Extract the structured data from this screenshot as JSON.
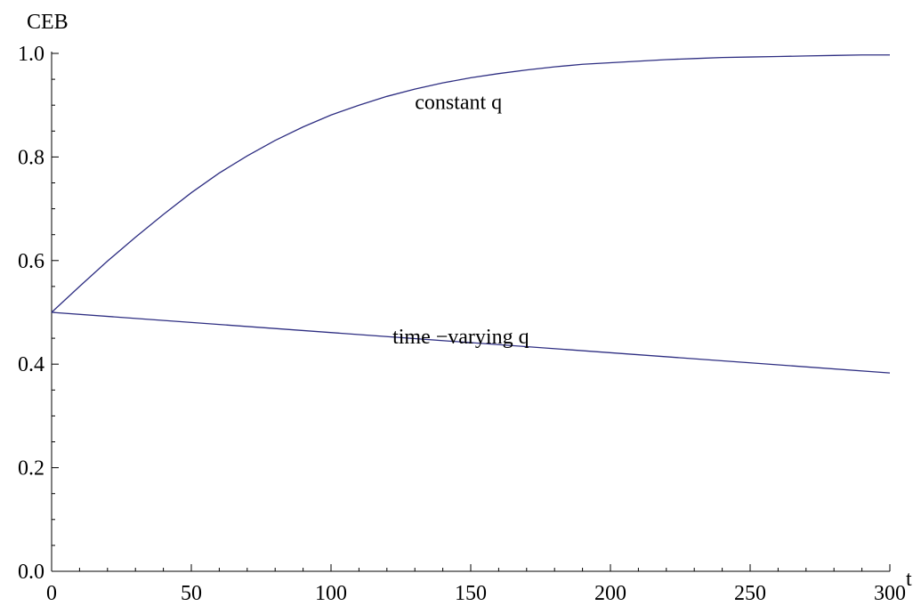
{
  "chart_data": {
    "type": "line",
    "xlabel": "t",
    "ylabel": "CEB",
    "xlim": [
      0,
      300
    ],
    "ylim": [
      0,
      1.0
    ],
    "x_major_ticks": [
      0,
      50,
      100,
      150,
      200,
      250,
      300
    ],
    "x_tick_labels": [
      "0",
      "50",
      "100",
      "150",
      "200",
      "250",
      "300"
    ],
    "x_minor_step": 10,
    "y_major_ticks": [
      0,
      0.2,
      0.4,
      0.6,
      0.8,
      1.0
    ],
    "y_tick_labels": [
      "0.0",
      "0.2",
      "0.4",
      "0.6",
      "0.8",
      "1.0"
    ],
    "y_minor_step": 0.05,
    "grid": false,
    "line_color": "#2e2e82",
    "series": [
      {
        "label": "constant q",
        "x": [
          0,
          10,
          20,
          30,
          40,
          50,
          60,
          70,
          80,
          90,
          100,
          110,
          120,
          130,
          140,
          150,
          160,
          170,
          180,
          190,
          200,
          210,
          220,
          230,
          240,
          250,
          260,
          270,
          280,
          290,
          300
        ],
        "y": [
          0.5,
          0.55,
          0.599,
          0.645,
          0.689,
          0.731,
          0.769,
          0.802,
          0.832,
          0.858,
          0.881,
          0.9,
          0.917,
          0.931,
          0.943,
          0.953,
          0.961,
          0.968,
          0.974,
          0.979,
          0.982,
          0.985,
          0.988,
          0.99,
          0.992,
          0.993,
          0.994,
          0.995,
          0.996,
          0.997,
          0.997
        ]
      },
      {
        "label": "time −varying q",
        "x": [
          0,
          300
        ],
        "y": [
          0.5,
          0.383
        ]
      }
    ],
    "annotations": [
      {
        "text": "constant q",
        "x": 130,
        "y": 0.893
      },
      {
        "text": "time −varying q",
        "x": 122,
        "y": 0.44
      }
    ]
  }
}
